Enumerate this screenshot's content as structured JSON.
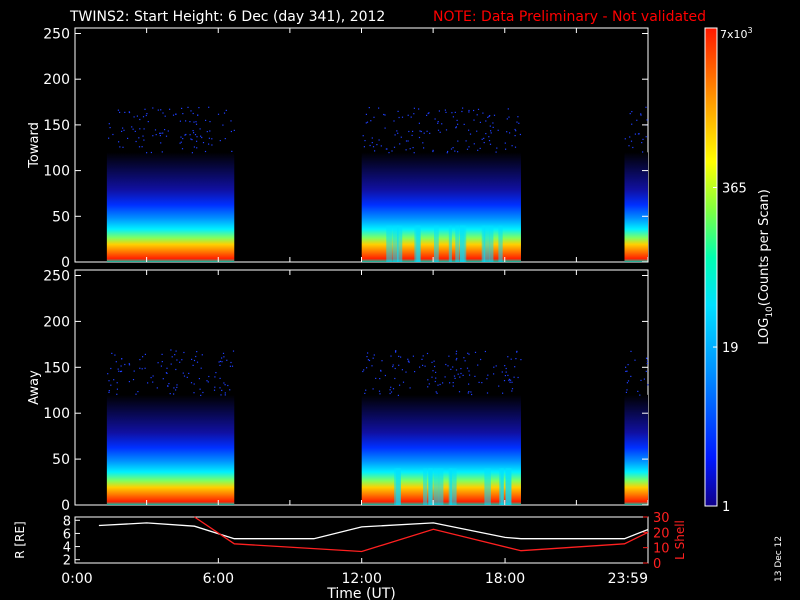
{
  "header": {
    "title": "TWINS2: Start Height:  6 Dec (day 341), 2012",
    "note": "NOTE: Data Preliminary - Not validated",
    "note_color": "#ff0000"
  },
  "footer": {
    "date_stamp": "13 Dec 12"
  },
  "chart_data": [
    {
      "type": "heatmap",
      "panel": "top",
      "ylabel": "Toward",
      "xlim": [
        "0:00",
        "23:59"
      ],
      "ylim": [
        0,
        256
      ],
      "yticks": [
        "0",
        "50",
        "100",
        "150",
        "200",
        "250"
      ],
      "data_intervals": [
        [
          "1:20",
          "6:40"
        ],
        [
          "12:00",
          "18:40"
        ],
        [
          "23:00",
          "23:59"
        ]
      ]
    },
    {
      "type": "heatmap",
      "panel": "middle",
      "ylabel": "Away",
      "xlim": [
        "0:00",
        "23:59"
      ],
      "ylim": [
        0,
        256
      ],
      "yticks": [
        "0",
        "50",
        "100",
        "150",
        "200",
        "250"
      ],
      "data_intervals": [
        [
          "1:20",
          "6:40"
        ],
        [
          "12:00",
          "18:40"
        ],
        [
          "23:00",
          "23:59"
        ]
      ]
    },
    {
      "type": "line",
      "panel": "bottom",
      "xlabel": "Time (UT)",
      "xticks": [
        "0:00",
        "6:00",
        "12:00",
        "18:00",
        "23:59"
      ],
      "left_axis": {
        "label": "R [RE]",
        "ticks": [
          "2",
          "4",
          "6",
          "8"
        ],
        "ylim": [
          1.5,
          8.5
        ]
      },
      "right_axis": {
        "label": "L Shell",
        "ticks": [
          "0",
          "10",
          "20",
          "30"
        ],
        "ylim": [
          0,
          30
        ],
        "color": "#ff2020"
      },
      "series": [
        {
          "axis": "left",
          "color": "#ffffff",
          "x": [
            "1:00",
            "3:00",
            "5:00",
            "6:40",
            "10:00",
            "12:00",
            "15:00",
            "18:00",
            "18:40",
            "21:00",
            "23:00",
            "23:59"
          ],
          "y": [
            7.2,
            7.6,
            7.1,
            5.2,
            5.2,
            7.0,
            7.6,
            5.4,
            5.2,
            5.2,
            5.2,
            6.6
          ]
        },
        {
          "axis": "right",
          "color": "#ff2020",
          "x": [
            "5:00",
            "6:40",
            "12:00",
            "15:00",
            "18:40",
            "23:00",
            "23:59"
          ],
          "y": [
            30,
            12.5,
            7.5,
            22.0,
            8.0,
            12.5,
            20.0
          ]
        }
      ]
    },
    {
      "type": "colorbar",
      "label": "LOG10(Counts per Scan)",
      "label_main": "LOG",
      "label_sub": "10",
      "label_rest": "(Counts per Scan)",
      "ticks": [
        "1",
        "19",
        "365"
      ],
      "top_label": {
        "base": "7x10",
        "exp": "3"
      }
    }
  ]
}
